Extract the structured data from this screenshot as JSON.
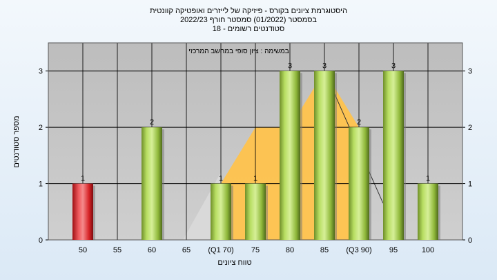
{
  "title_lines": [
    "היסטוגרמת ציונים בקורס - פיזיקה של לייזרים ואופטיקה קוונטית",
    "בסמסטר  (01/2022)  סמסטר חורף 2022/23",
    "סטודנטים רשומים - 18"
  ],
  "chart_data": {
    "type": "bar",
    "annotation": "במשימה : ציון סופי במחשב המרכזי",
    "xlabel": "טווח ציונים",
    "ylabel": "מספר סטודנטים",
    "categories": [
      "50",
      "55",
      "60",
      "65",
      "(Q1 70)",
      "75",
      "80",
      "85",
      "(Q3 90)",
      "95",
      "100"
    ],
    "values": [
      1,
      0,
      2,
      0,
      1,
      1,
      3,
      3,
      2,
      3,
      1
    ],
    "value_labels": [
      "1",
      "",
      "2",
      "",
      "1",
      "1",
      "3",
      "3",
      "2",
      "3",
      "1"
    ],
    "ylim": [
      0,
      3.5
    ],
    "yticks": [
      0,
      1,
      2,
      3
    ],
    "grid": true,
    "colors": {
      "failing_bar": "#e0262b",
      "passing_bar": "#9fcf3f",
      "distribution_area": "#ffc34d",
      "plot_background": "#c0c0c0",
      "grid": "#000000"
    }
  }
}
